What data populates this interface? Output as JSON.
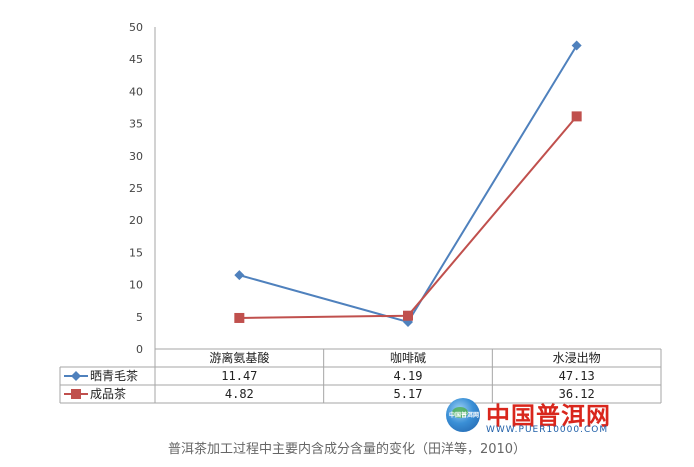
{
  "chart_data": {
    "type": "line",
    "categories": [
      "游离氨基酸",
      "咖啡碱",
      "水浸出物"
    ],
    "series": [
      {
        "name": "晒青毛茶",
        "values": [
          11.47,
          4.19,
          47.13
        ],
        "value_labels": [
          "11.47",
          "4.19",
          "47.13"
        ],
        "color": "#4f81bd",
        "marker": "diamond"
      },
      {
        "name": "成品茶",
        "values": [
          4.82,
          5.17,
          36.12
        ],
        "value_labels": [
          "4.82",
          "5.17",
          "36.12"
        ],
        "color": "#c0504d",
        "marker": "square"
      }
    ],
    "ylim": [
      0,
      50
    ],
    "yticks": [
      "0",
      "5",
      "10",
      "15",
      "20",
      "25",
      "30",
      "35",
      "40",
      "45",
      "50"
    ],
    "grid": false,
    "legend_placement": "data-table-left",
    "has_data_table": true
  },
  "caption": "普洱茶加工过程中主要内含成分含量的变化（田洋等，2010）",
  "watermark": {
    "title": "中国普洱网",
    "url": "WWW.PUER10000.COM",
    "tag": "中国普洱网"
  }
}
